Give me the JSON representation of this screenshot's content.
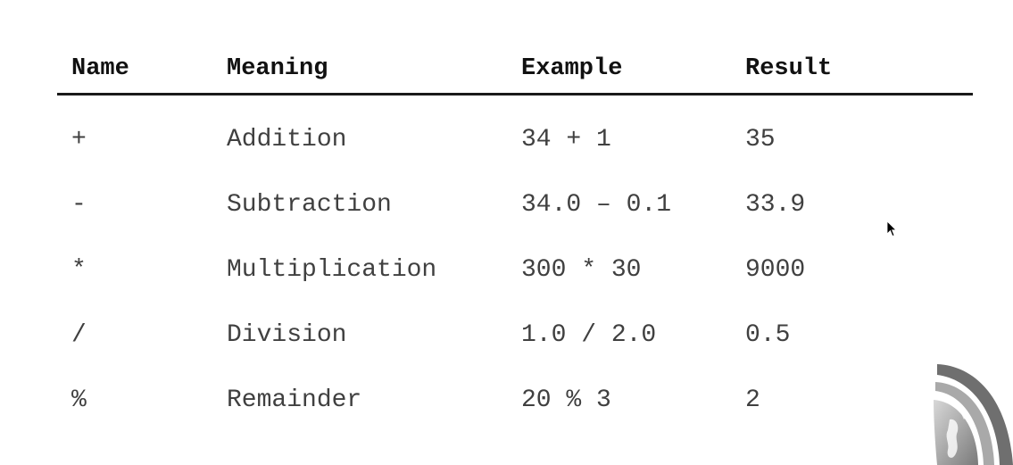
{
  "table": {
    "headers": {
      "name": "Name",
      "meaning": "Meaning",
      "example": "Example",
      "result": "Result"
    },
    "rows": [
      {
        "name": "+",
        "meaning": "Addition",
        "example": "34 + 1",
        "result": "35"
      },
      {
        "name": "-",
        "meaning": "Subtraction",
        "example": "34.0 – 0.1",
        "result": "33.9"
      },
      {
        "name": "*",
        "meaning": "Multiplication",
        "example": "300 * 30",
        "result": "9000"
      },
      {
        "name": "/",
        "meaning": "Division",
        "example": "1.0 / 2.0",
        "result": "0.5"
      },
      {
        "name": "%",
        "meaning": "Remainder",
        "example": "20 % 3",
        "result": "2"
      }
    ]
  },
  "icons": {
    "cursor": "mouse-pointer-icon",
    "logo": "globe-swoosh-logo"
  },
  "colors": {
    "header_rule": "#1a1a1a",
    "text": "#404040",
    "header_text": "#111111"
  }
}
